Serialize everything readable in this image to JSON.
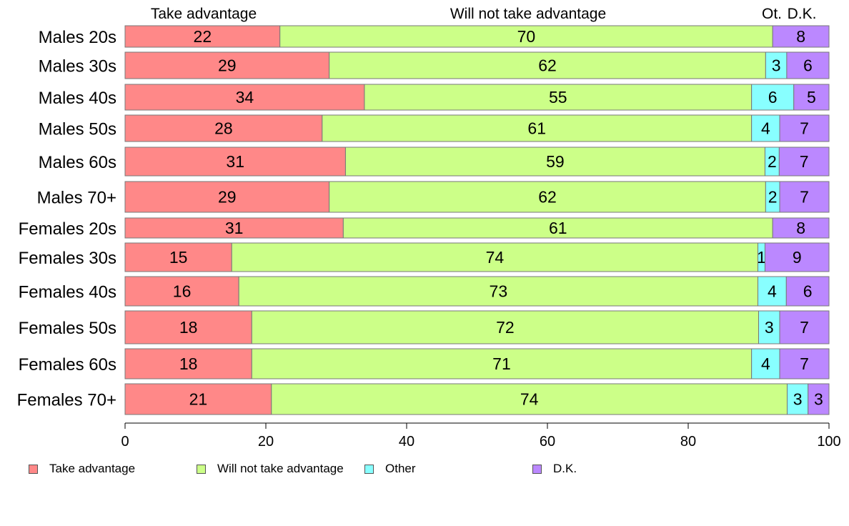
{
  "chart_data": {
    "type": "bar",
    "orientation": "horizontal",
    "stacked": true,
    "categories": [
      "Males 20s",
      "Males 30s",
      "Males 40s",
      "Males 50s",
      "Males 60s",
      "Males 70+",
      "Females 20s",
      "Females 30s",
      "Females 40s",
      "Females 50s",
      "Females 60s",
      "Females 70+"
    ],
    "series": [
      {
        "name": "Take advantage",
        "color": "#ff8888",
        "values": [
          22,
          29,
          34,
          28,
          31,
          29,
          31,
          15,
          16,
          18,
          18,
          21
        ]
      },
      {
        "name": "Will not take advantage",
        "color": "#ccff88",
        "values": [
          70,
          62,
          55,
          61,
          59,
          62,
          61,
          74,
          73,
          72,
          71,
          74
        ]
      },
      {
        "name": "Other",
        "color": "#88ffff",
        "values": [
          0,
          3,
          6,
          4,
          2,
          2,
          0,
          1,
          4,
          3,
          4,
          3
        ]
      },
      {
        "name": "D.K.",
        "color": "#bb88ff",
        "values": [
          8,
          6,
          5,
          7,
          7,
          7,
          8,
          9,
          6,
          7,
          7,
          3
        ]
      }
    ],
    "top_labels": [
      "Take advantage",
      "Will not take advantage",
      "Ot.",
      "D.K."
    ],
    "xlim": [
      0,
      100
    ],
    "xticks": [
      0,
      20,
      40,
      60,
      80,
      100
    ],
    "legend_position": "bottom"
  }
}
